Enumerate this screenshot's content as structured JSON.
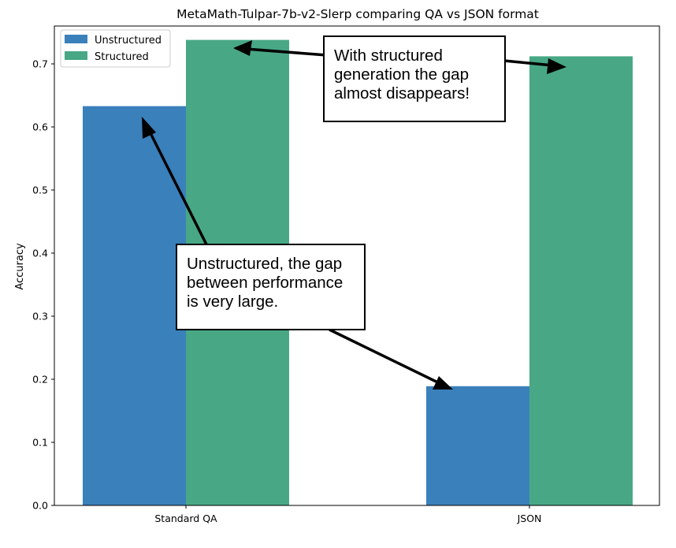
{
  "chart_data": {
    "type": "bar",
    "title": "MetaMath-Tulpar-7b-v2-Slerp comparing QA vs JSON format",
    "xlabel": "",
    "ylabel": "Accuracy",
    "categories": [
      "Standard QA",
      "JSON"
    ],
    "series": [
      {
        "name": "Unstructured",
        "values": [
          0.633,
          0.189
        ],
        "color": "#3a80bb"
      },
      {
        "name": "Structured",
        "values": [
          0.738,
          0.712
        ],
        "color": "#48a886"
      }
    ],
    "ylim": [
      0,
      0.76
    ],
    "yticks": [
      "0.0",
      "0.1",
      "0.2",
      "0.3",
      "0.4",
      "0.5",
      "0.6",
      "0.7"
    ],
    "grid": false,
    "legend_position": "top-left",
    "annotations": [
      {
        "text": "With structured generation the gap almost disappears!"
      },
      {
        "text": "Unstructured, the gap between performance is very large."
      }
    ]
  }
}
